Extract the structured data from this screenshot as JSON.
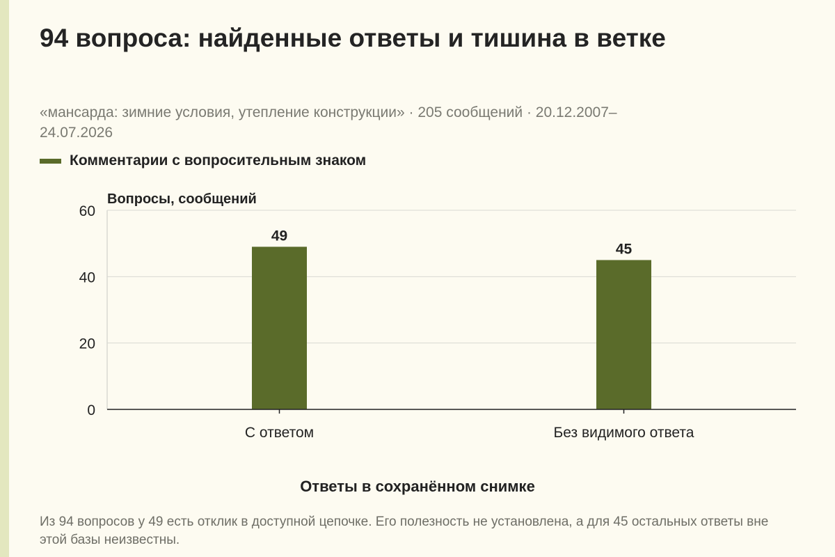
{
  "title": "94 вопроса: найденные ответы и тишина в ветке",
  "subtitle": "«мансарда: зимние условия, утепление конструкции» · 205 сообщений · 20.12.2007–24.07.2026",
  "footnote": "Из 94 вопросов у 49 есть отклик в доступной цепочке. Его полезность не установлена, а для 45 остальных ответы вне этой базы неизвестны.",
  "colors": {
    "bar": "#5a6b2a",
    "grid": "#d9d9d2",
    "axis": "#222222",
    "background": "#fdfbf1"
  },
  "chart_data": {
    "type": "bar",
    "title": "94 вопроса: найденные ответы и тишина в ветке",
    "categories": [
      "С ответом",
      "Без видимого ответа"
    ],
    "series": [
      {
        "name": "Комментарии с вопросительным знаком",
        "values": [
          49,
          45
        ]
      }
    ],
    "xlabel": "Ответы в сохранённом снимке",
    "ylabel": "Вопросы, сообщений",
    "ylim": [
      0,
      60
    ],
    "yticks": [
      0,
      20,
      40,
      60
    ],
    "grid": true,
    "legend_position": "top-left",
    "data_labels": true
  }
}
